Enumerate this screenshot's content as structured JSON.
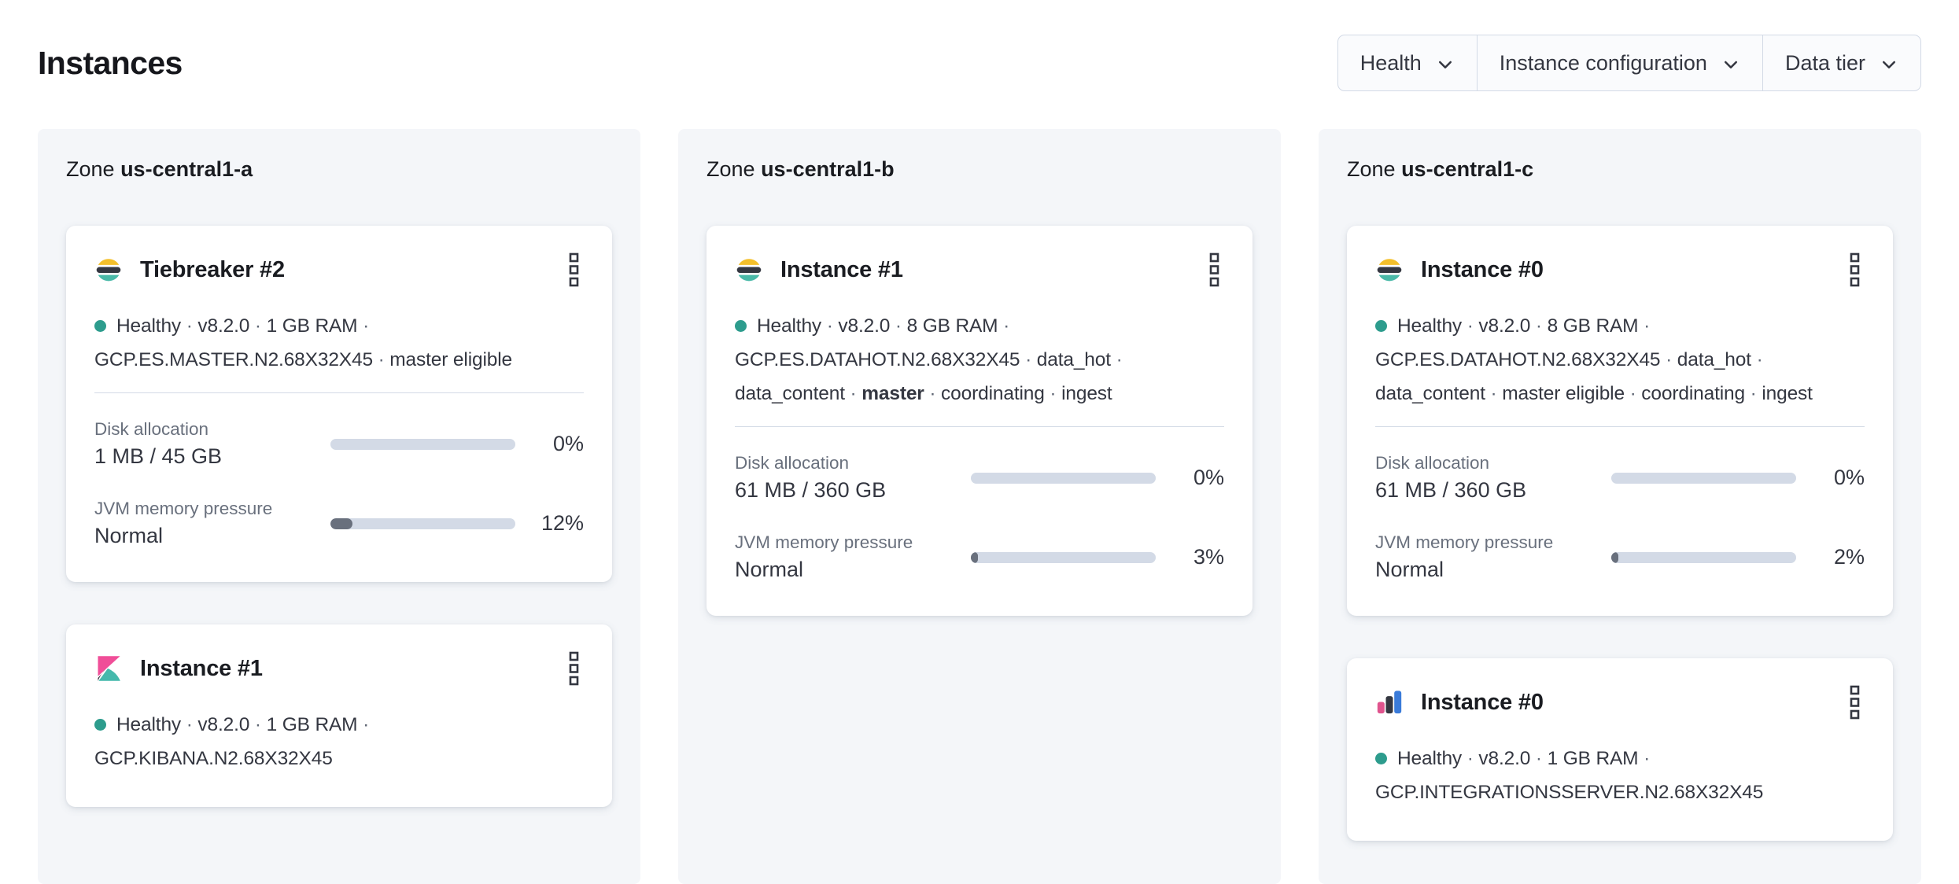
{
  "page": {
    "title": "Instances"
  },
  "filters": {
    "health": {
      "label": "Health"
    },
    "instance_configuration": {
      "label": "Instance configuration"
    },
    "data_tier": {
      "label": "Data tier"
    }
  },
  "zones": [
    {
      "prefix": "Zone",
      "name": "us-central1-a",
      "cards": [
        {
          "icon": "elasticsearch-logo",
          "title": "Tiebreaker #2",
          "segments": [
            {
              "text": "Healthy",
              "health": true
            },
            {
              "text": "v8.2.0"
            },
            {
              "text": "1 GB RAM"
            },
            {
              "text": "GCP.ES.MASTER.N2.68X32X45"
            },
            {
              "text": "master eligible"
            }
          ],
          "metrics": [
            {
              "label": "Disk allocation",
              "value": "1 MB / 45 GB",
              "pct": 0,
              "pct_label": "0%"
            },
            {
              "label": "JVM memory pressure",
              "value": "Normal",
              "pct": 12,
              "pct_label": "12%"
            }
          ]
        },
        {
          "icon": "kibana-logo",
          "title": "Instance #1",
          "segments": [
            {
              "text": "Healthy",
              "health": true
            },
            {
              "text": "v8.2.0"
            },
            {
              "text": "1 GB RAM"
            },
            {
              "text": "GCP.KIBANA.N2.68X32X45"
            }
          ]
        }
      ]
    },
    {
      "prefix": "Zone",
      "name": "us-central1-b",
      "cards": [
        {
          "icon": "elasticsearch-logo",
          "title": "Instance #1",
          "segments": [
            {
              "text": "Healthy",
              "health": true
            },
            {
              "text": "v8.2.0"
            },
            {
              "text": "8 GB RAM"
            },
            {
              "text": "GCP.ES.DATAHOT.N2.68X32X45"
            },
            {
              "text": "data_hot"
            },
            {
              "text": "data_content"
            },
            {
              "text": "master",
              "bold": true
            },
            {
              "text": "coordinating"
            },
            {
              "text": "ingest"
            }
          ],
          "metrics": [
            {
              "label": "Disk allocation",
              "value": "61 MB / 360 GB",
              "pct": 0,
              "pct_label": "0%"
            },
            {
              "label": "JVM memory pressure",
              "value": "Normal",
              "pct": 3,
              "pct_label": "3%"
            }
          ]
        }
      ]
    },
    {
      "prefix": "Zone",
      "name": "us-central1-c",
      "cards": [
        {
          "icon": "elasticsearch-logo",
          "title": "Instance #0",
          "segments": [
            {
              "text": "Healthy",
              "health": true
            },
            {
              "text": "v8.2.0"
            },
            {
              "text": "8 GB RAM"
            },
            {
              "text": "GCP.ES.DATAHOT.N2.68X32X45"
            },
            {
              "text": "data_hot"
            },
            {
              "text": "data_content"
            },
            {
              "text": "master eligible"
            },
            {
              "text": "coordinating"
            },
            {
              "text": "ingest"
            }
          ],
          "metrics": [
            {
              "label": "Disk allocation",
              "value": "61 MB / 360 GB",
              "pct": 0,
              "pct_label": "0%"
            },
            {
              "label": "JVM memory pressure",
              "value": "Normal",
              "pct": 2,
              "pct_label": "2%"
            }
          ]
        },
        {
          "icon": "integrations-server-logo",
          "title": "Instance #0",
          "segments": [
            {
              "text": "Healthy",
              "health": true
            },
            {
              "text": "v8.2.0"
            },
            {
              "text": "1 GB RAM"
            },
            {
              "text": "GCP.INTEGRATIONSSERVER.N2.68X32X45"
            }
          ]
        }
      ]
    }
  ],
  "colors": {
    "healthy_dot": "#2D9C8D",
    "progress_track": "#D3DAE6",
    "progress_fill": "#69707D",
    "elastic_yellow": "#F4C02C",
    "elastic_teal": "#49B9A8",
    "elastic_dark": "#343741",
    "kibana_pink": "#F04E98",
    "integrations_blue": "#3A7BD9"
  }
}
